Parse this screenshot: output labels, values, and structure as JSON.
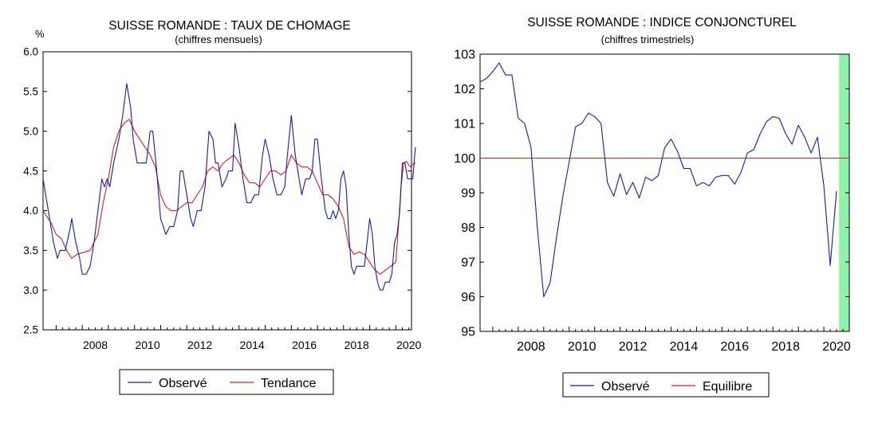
{
  "chart_data": [
    {
      "type": "line",
      "title": "SUISSE ROMANDE : TAUX DE CHOMAGE",
      "subtitle": "(chiffres mensuels)",
      "ylabel": "%",
      "ylim": [
        2.5,
        6.0
      ],
      "yticks": [
        "6.0",
        "5.5",
        "5.0",
        "4.5",
        "4.0",
        "3.5",
        "3.0",
        "2.5"
      ],
      "xlim": [
        2006.5,
        2020.6
      ],
      "xticks": [
        "2008",
        "2010",
        "2012",
        "2014",
        "2016",
        "2018",
        "2020"
      ],
      "grid": false,
      "legend_position": "bottom",
      "series": [
        {
          "name": "Observé",
          "color": "#1a1aa8",
          "points": [
            [
              2006.5,
              4.4
            ],
            [
              2006.7,
              4.0
            ],
            [
              2006.9,
              3.6
            ],
            [
              2007.05,
              3.4
            ],
            [
              2007.15,
              3.5
            ],
            [
              2007.35,
              3.5
            ],
            [
              2007.55,
              3.8
            ],
            [
              2007.6,
              3.9
            ],
            [
              2007.75,
              3.6
            ],
            [
              2007.9,
              3.4
            ],
            [
              2008.0,
              3.2
            ],
            [
              2008.15,
              3.2
            ],
            [
              2008.3,
              3.3
            ],
            [
              2008.45,
              3.6
            ],
            [
              2008.6,
              4.0
            ],
            [
              2008.75,
              4.4
            ],
            [
              2008.85,
              4.3
            ],
            [
              2008.95,
              4.4
            ],
            [
              2009.05,
              4.3
            ],
            [
              2009.2,
              4.6
            ],
            [
              2009.4,
              4.9
            ],
            [
              2009.55,
              5.2
            ],
            [
              2009.7,
              5.6
            ],
            [
              2009.85,
              5.3
            ],
            [
              2009.95,
              4.9
            ],
            [
              2010.1,
              4.6
            ],
            [
              2010.3,
              4.6
            ],
            [
              2010.45,
              4.6
            ],
            [
              2010.6,
              5.0
            ],
            [
              2010.7,
              5.0
            ],
            [
              2010.85,
              4.5
            ],
            [
              2011.0,
              3.9
            ],
            [
              2011.2,
              3.7
            ],
            [
              2011.35,
              3.8
            ],
            [
              2011.5,
              3.8
            ],
            [
              2011.65,
              4.0
            ],
            [
              2011.75,
              4.5
            ],
            [
              2011.85,
              4.5
            ],
            [
              2012.0,
              4.2
            ],
            [
              2012.15,
              3.9
            ],
            [
              2012.25,
              3.8
            ],
            [
              2012.4,
              4.0
            ],
            [
              2012.55,
              4.0
            ],
            [
              2012.7,
              4.3
            ],
            [
              2012.85,
              5.0
            ],
            [
              2013.0,
              4.9
            ],
            [
              2013.1,
              4.6
            ],
            [
              2013.2,
              4.6
            ],
            [
              2013.35,
              4.3
            ],
            [
              2013.5,
              4.4
            ],
            [
              2013.6,
              4.5
            ],
            [
              2013.75,
              4.5
            ],
            [
              2013.85,
              5.1
            ],
            [
              2014.0,
              4.8
            ],
            [
              2014.15,
              4.4
            ],
            [
              2014.3,
              4.1
            ],
            [
              2014.45,
              4.1
            ],
            [
              2014.6,
              4.2
            ],
            [
              2014.75,
              4.2
            ],
            [
              2014.9,
              4.7
            ],
            [
              2015.0,
              4.9
            ],
            [
              2015.15,
              4.7
            ],
            [
              2015.3,
              4.4
            ],
            [
              2015.45,
              4.2
            ],
            [
              2015.6,
              4.2
            ],
            [
              2015.75,
              4.3
            ],
            [
              2015.85,
              4.7
            ],
            [
              2016.0,
              5.2
            ],
            [
              2016.15,
              4.7
            ],
            [
              2016.3,
              4.4
            ],
            [
              2016.4,
              4.2
            ],
            [
              2016.55,
              4.4
            ],
            [
              2016.7,
              4.4
            ],
            [
              2016.8,
              4.5
            ],
            [
              2016.9,
              4.9
            ],
            [
              2017.0,
              4.9
            ],
            [
              2017.15,
              4.4
            ],
            [
              2017.3,
              4.0
            ],
            [
              2017.4,
              3.9
            ],
            [
              2017.5,
              3.9
            ],
            [
              2017.6,
              4.0
            ],
            [
              2017.7,
              3.9
            ],
            [
              2017.8,
              4.0
            ],
            [
              2017.9,
              4.4
            ],
            [
              2018.0,
              4.5
            ],
            [
              2018.1,
              4.3
            ],
            [
              2018.2,
              3.7
            ],
            [
              2018.3,
              3.3
            ],
            [
              2018.4,
              3.2
            ],
            [
              2018.5,
              3.3
            ],
            [
              2018.65,
              3.3
            ],
            [
              2018.8,
              3.3
            ],
            [
              2018.9,
              3.6
            ],
            [
              2019.0,
              3.9
            ],
            [
              2019.1,
              3.7
            ],
            [
              2019.2,
              3.3
            ],
            [
              2019.3,
              3.1
            ],
            [
              2019.4,
              3.0
            ],
            [
              2019.5,
              3.0
            ],
            [
              2019.6,
              3.1
            ],
            [
              2019.75,
              3.1
            ],
            [
              2019.85,
              3.2
            ],
            [
              2019.95,
              3.6
            ],
            [
              2020.05,
              3.7
            ],
            [
              2020.15,
              4.0
            ],
            [
              2020.25,
              4.6
            ],
            [
              2020.35,
              4.6
            ],
            [
              2020.45,
              4.4
            ],
            [
              2020.55,
              4.4
            ],
            [
              2020.65,
              4.4
            ],
            [
              2020.7,
              4.6
            ],
            [
              2020.75,
              4.8
            ]
          ]
        },
        {
          "name": "Tendance",
          "color": "#d42020",
          "points": [
            [
              2006.5,
              4.0
            ],
            [
              2006.8,
              3.85
            ],
            [
              2007.0,
              3.7
            ],
            [
              2007.2,
              3.65
            ],
            [
              2007.4,
              3.5
            ],
            [
              2007.6,
              3.4
            ],
            [
              2007.8,
              3.45
            ],
            [
              2008.0,
              3.47
            ],
            [
              2008.3,
              3.5
            ],
            [
              2008.6,
              3.7
            ],
            [
              2008.8,
              4.1
            ],
            [
              2009.0,
              4.4
            ],
            [
              2009.2,
              4.8
            ],
            [
              2009.4,
              5.0
            ],
            [
              2009.6,
              5.1
            ],
            [
              2009.8,
              5.15
            ],
            [
              2010.0,
              5.0
            ],
            [
              2010.2,
              4.9
            ],
            [
              2010.4,
              4.8
            ],
            [
              2010.6,
              4.7
            ],
            [
              2010.8,
              4.55
            ],
            [
              2011.0,
              4.2
            ],
            [
              2011.2,
              4.05
            ],
            [
              2011.4,
              4.0
            ],
            [
              2011.6,
              4.0
            ],
            [
              2011.8,
              4.05
            ],
            [
              2012.0,
              4.1
            ],
            [
              2012.2,
              4.1
            ],
            [
              2012.4,
              4.2
            ],
            [
              2012.6,
              4.3
            ],
            [
              2012.8,
              4.5
            ],
            [
              2013.0,
              4.55
            ],
            [
              2013.2,
              4.5
            ],
            [
              2013.4,
              4.6
            ],
            [
              2013.6,
              4.65
            ],
            [
              2013.8,
              4.7
            ],
            [
              2014.0,
              4.6
            ],
            [
              2014.2,
              4.45
            ],
            [
              2014.4,
              4.35
            ],
            [
              2014.6,
              4.35
            ],
            [
              2014.8,
              4.3
            ],
            [
              2015.0,
              4.4
            ],
            [
              2015.2,
              4.5
            ],
            [
              2015.4,
              4.5
            ],
            [
              2015.6,
              4.45
            ],
            [
              2015.8,
              4.5
            ],
            [
              2016.0,
              4.7
            ],
            [
              2016.2,
              4.6
            ],
            [
              2016.4,
              4.55
            ],
            [
              2016.6,
              4.55
            ],
            [
              2016.8,
              4.5
            ],
            [
              2017.0,
              4.35
            ],
            [
              2017.2,
              4.2
            ],
            [
              2017.4,
              4.2
            ],
            [
              2017.6,
              4.15
            ],
            [
              2017.8,
              4.05
            ],
            [
              2018.0,
              3.9
            ],
            [
              2018.2,
              3.55
            ],
            [
              2018.4,
              3.45
            ],
            [
              2018.6,
              3.48
            ],
            [
              2018.8,
              3.45
            ],
            [
              2019.0,
              3.35
            ],
            [
              2019.2,
              3.25
            ],
            [
              2019.4,
              3.2
            ],
            [
              2019.6,
              3.25
            ],
            [
              2019.8,
              3.3
            ],
            [
              2020.0,
              3.35
            ],
            [
              2020.1,
              3.8
            ],
            [
              2020.2,
              4.3
            ],
            [
              2020.3,
              4.6
            ],
            [
              2020.4,
              4.62
            ],
            [
              2020.55,
              4.55
            ],
            [
              2020.7,
              4.6
            ],
            [
              2020.75,
              4.6
            ]
          ]
        }
      ]
    },
    {
      "type": "line",
      "title": "SUISSE ROMANDE : INDICE CONJONCTUREL",
      "subtitle": "(chiffres trimestriels)",
      "ylim": [
        95,
        103
      ],
      "yticks": [
        "103",
        "102",
        "101",
        "100",
        "99",
        "98",
        "97",
        "96",
        "95"
      ],
      "xlim": [
        2006.5,
        2021.0
      ],
      "xticks": [
        "2008",
        "2010",
        "2012",
        "2014",
        "2016",
        "2018",
        "2020"
      ],
      "grid": false,
      "legend_position": "bottom",
      "shaded_region": {
        "from": 2020.6,
        "to": 2021.0,
        "color": "#8ff0a8"
      },
      "series": [
        {
          "name": "Observé",
          "color": "#1a1aa8",
          "points": [
            [
              2006.5,
              102.2
            ],
            [
              2006.75,
              102.3
            ],
            [
              2007.0,
              102.5
            ],
            [
              2007.25,
              102.75
            ],
            [
              2007.5,
              102.4
            ],
            [
              2007.75,
              102.4
            ],
            [
              2008.0,
              101.15
            ],
            [
              2008.25,
              101.0
            ],
            [
              2008.5,
              100.3
            ],
            [
              2008.75,
              98.0
            ],
            [
              2009.0,
              96.0
            ],
            [
              2009.25,
              96.4
            ],
            [
              2009.5,
              97.7
            ],
            [
              2009.75,
              98.9
            ],
            [
              2010.0,
              99.9
            ],
            [
              2010.25,
              100.9
            ],
            [
              2010.5,
              101.0
            ],
            [
              2010.75,
              101.3
            ],
            [
              2011.0,
              101.2
            ],
            [
              2011.25,
              101.0
            ],
            [
              2011.5,
              99.3
            ],
            [
              2011.75,
              98.9
            ],
            [
              2012.0,
              99.55
            ],
            [
              2012.25,
              98.95
            ],
            [
              2012.5,
              99.3
            ],
            [
              2012.75,
              98.85
            ],
            [
              2013.0,
              99.45
            ],
            [
              2013.25,
              99.35
            ],
            [
              2013.5,
              99.5
            ],
            [
              2013.75,
              100.3
            ],
            [
              2014.0,
              100.55
            ],
            [
              2014.25,
              100.2
            ],
            [
              2014.5,
              99.7
            ],
            [
              2014.75,
              99.7
            ],
            [
              2015.0,
              99.2
            ],
            [
              2015.25,
              99.3
            ],
            [
              2015.5,
              99.2
            ],
            [
              2015.75,
              99.45
            ],
            [
              2016.0,
              99.5
            ],
            [
              2016.25,
              99.5
            ],
            [
              2016.5,
              99.25
            ],
            [
              2016.75,
              99.6
            ],
            [
              2017.0,
              100.15
            ],
            [
              2017.25,
              100.25
            ],
            [
              2017.5,
              100.7
            ],
            [
              2017.75,
              101.05
            ],
            [
              2018.0,
              101.2
            ],
            [
              2018.25,
              101.15
            ],
            [
              2018.5,
              100.7
            ],
            [
              2018.75,
              100.4
            ],
            [
              2019.0,
              100.95
            ],
            [
              2019.25,
              100.6
            ],
            [
              2019.5,
              100.15
            ],
            [
              2019.75,
              100.6
            ],
            [
              2020.0,
              99.2
            ],
            [
              2020.25,
              96.9
            ],
            [
              2020.5,
              99.05
            ]
          ]
        },
        {
          "name": "Equilibre",
          "color": "#d42020",
          "points": [
            [
              2006.5,
              100
            ],
            [
              2021.0,
              100
            ]
          ]
        }
      ]
    }
  ]
}
